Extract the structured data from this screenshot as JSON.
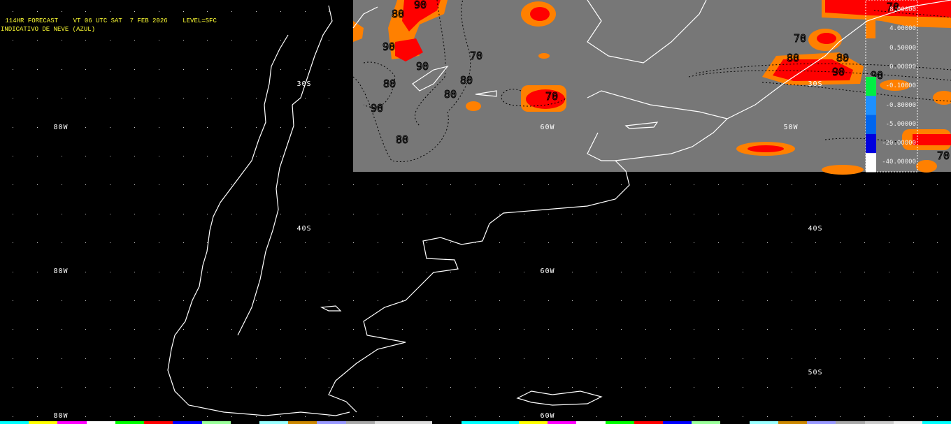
{
  "header": {
    "line1": " 114HR FORECAST    VT 06 UTC SAT  7 FEB 2026    LEVEL=SFC",
    "line2": "INDICATIVO DE NEVE (AZUL)"
  },
  "colors": {
    "background": "#000000",
    "panel": "#777777",
    "coast": "#ffffff",
    "high": "#ff0000",
    "mid": "#ff8000",
    "title": "#ffff33"
  },
  "grid_labels": [
    {
      "text": "30S",
      "lat": -30,
      "lon": -70
    },
    {
      "text": "30S",
      "lat": -30,
      "lon": -49
    },
    {
      "text": "40S",
      "lat": -40,
      "lon": -70
    },
    {
      "text": "40S",
      "lat": -40,
      "lon": -49
    },
    {
      "text": "50S",
      "lat": -50,
      "lon": -49
    },
    {
      "text": "80W",
      "lat": -33,
      "lon": -80
    },
    {
      "text": "80W",
      "lat": -43,
      "lon": -80
    },
    {
      "text": "80W",
      "lat": -53,
      "lon": -80
    },
    {
      "text": "60W",
      "lat": -33,
      "lon": -60
    },
    {
      "text": "60W",
      "lat": -43,
      "lon": -60
    },
    {
      "text": "60W",
      "lat": -53,
      "lon": -60
    },
    {
      "text": "50W",
      "lat": -33,
      "lon": -50
    }
  ],
  "contour_labels": [
    "90",
    "80",
    "90",
    "90",
    "70",
    "80",
    "80",
    "90",
    "80",
    "70",
    "80",
    "70",
    "90",
    "80",
    "90",
    "80",
    "70",
    "70"
  ],
  "legend": {
    "values": [
      "8.00000",
      "4.00000",
      "0.50000",
      "0.00000",
      "-0.10000",
      "-0.80000",
      "-5.00000",
      "-20.00000",
      "-40.00000"
    ],
    "colors": [
      "#ff0000",
      "#ff8000",
      "#777777",
      "#777777",
      "#00ee44",
      "#1e90ff",
      "#0066ee",
      "#0000dd",
      "#ffffff"
    ]
  },
  "color_strip": [
    "#00ffff",
    "#ffff00",
    "#ff00ff",
    "#ffffff",
    "#00ff00",
    "#ff0000",
    "#0000ff",
    "#99ff99",
    "#000000",
    "#99ffff",
    "#cc8800",
    "#9999ff",
    "#aaaaaa",
    "#dddddd",
    "#dddddd",
    "#000000",
    "#00ffff",
    "#00ffff",
    "#ffff00",
    "#ff00ff",
    "#ffffff",
    "#00ff00",
    "#ff0000",
    "#0000ff",
    "#99ff99",
    "#000000",
    "#99ffff",
    "#cc8800",
    "#9999ff",
    "#aaaaaa",
    "#cccccc",
    "#eeeeee",
    "#00ffff"
  ]
}
